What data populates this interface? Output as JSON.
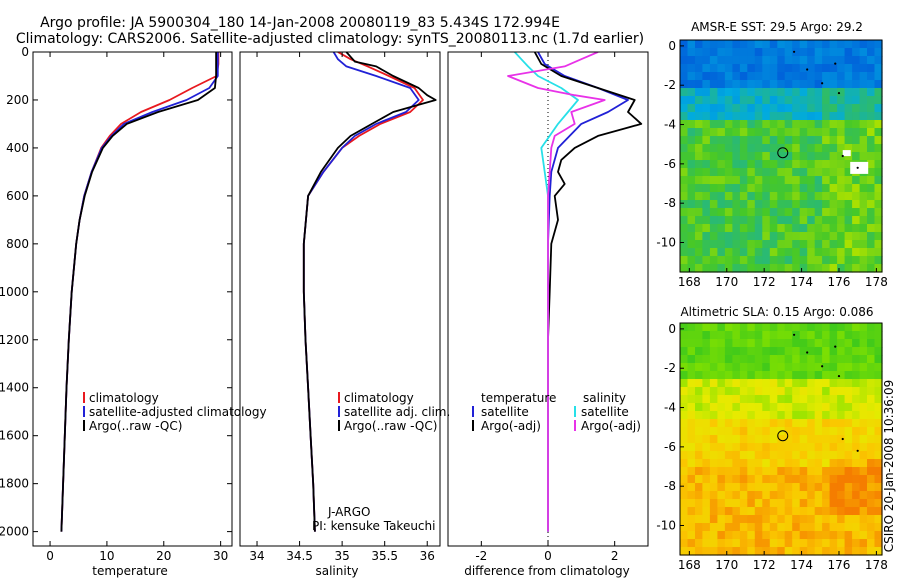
{
  "header": {
    "line1": "Argo profile: JA 5900304_180 14-Jan-2008 20080119_83 5.434S 172.994E",
    "line2": "Climatology: CARS2006. Satellite-adjusted climatology: synTS_20080113.nc (1.7d earlier)"
  },
  "side_stamp": "CSIRO 20-Jan-2008 10:36:09",
  "colors": {
    "climatology": "#e8191f",
    "satellite": "#2121d6",
    "argo": "#000000",
    "sat_sal": "#27e0e8",
    "argo_sal": "#e832e8",
    "axis": "#000000"
  },
  "chart_data": [
    {
      "type": "line",
      "name": "temperature-profile",
      "xlabel": "temperature",
      "ylabel": "",
      "xlim": [
        -3,
        32
      ],
      "ylim": [
        2060,
        0
      ],
      "xticks": [
        0,
        10,
        20,
        30
      ],
      "yticks": [
        0,
        200,
        400,
        600,
        800,
        1000,
        1200,
        1400,
        1600,
        1800,
        2000
      ],
      "legend": [
        "climatology",
        "satellite-adjusted climatology",
        "Argo(..raw -QC)"
      ],
      "series": [
        {
          "name": "climatology",
          "color_key": "climatology",
          "depth": [
            0,
            50,
            100,
            150,
            200,
            250,
            300,
            350,
            400,
            500,
            600,
            700,
            800,
            1000,
            1200,
            1400,
            1600,
            1800,
            2000
          ],
          "values": [
            29.6,
            29.6,
            29.3,
            25,
            21,
            16,
            12.5,
            10.5,
            9,
            7.3,
            6,
            5.2,
            4.6,
            3.8,
            3.3,
            2.9,
            2.6,
            2.3,
            2.0
          ]
        },
        {
          "name": "satellite-adjusted climatology",
          "color_key": "satellite",
          "depth": [
            0,
            50,
            100,
            150,
            200,
            250,
            300,
            350,
            400,
            500,
            600,
            700,
            800,
            1000,
            1200,
            1400,
            1600,
            1800,
            2000
          ],
          "values": [
            29.5,
            29.5,
            29.5,
            28,
            24,
            18,
            13,
            10.8,
            9.1,
            7.3,
            6,
            5.2,
            4.6,
            3.8,
            3.3,
            2.9,
            2.6,
            2.3,
            2.0
          ]
        },
        {
          "name": "Argo(..raw -QC)",
          "color_key": "argo",
          "depth": [
            0,
            50,
            100,
            150,
            200,
            250,
            300,
            350,
            400,
            500,
            600,
            700,
            800,
            1000,
            1200,
            1400,
            1600,
            1800,
            2000
          ],
          "values": [
            29.2,
            29.2,
            29.2,
            29,
            26,
            19,
            13.5,
            11,
            9.3,
            7.4,
            6.1,
            5.2,
            4.6,
            3.8,
            3.3,
            2.9,
            2.6,
            2.3,
            2.0
          ]
        }
      ],
      "annotations": []
    },
    {
      "type": "line",
      "name": "salinity-profile",
      "xlabel": "salinity",
      "ylabel": "",
      "xlim": [
        33.8,
        36.15
      ],
      "ylim": [
        2060,
        0
      ],
      "xticks": [
        34,
        34.5,
        35,
        35.5,
        36
      ],
      "yticks": [],
      "legend": [
        "climatology",
        "satellite adj. clim.",
        "Argo(..raw -QC)"
      ],
      "series": [
        {
          "name": "climatology",
          "color_key": "climatology",
          "depth": [
            0,
            30,
            60,
            100,
            150,
            200,
            250,
            300,
            350,
            400,
            500,
            600,
            800,
            1000,
            1200,
            1400,
            1600,
            1800,
            2000
          ],
          "values": [
            34.95,
            35.1,
            35.3,
            35.55,
            35.85,
            35.95,
            35.8,
            35.45,
            35.2,
            35.0,
            34.78,
            34.6,
            34.55,
            34.55,
            34.57,
            34.6,
            34.63,
            34.66,
            34.68
          ]
        },
        {
          "name": "satellite adj. clim.",
          "color_key": "satellite",
          "depth": [
            0,
            30,
            60,
            100,
            150,
            200,
            250,
            300,
            350,
            400,
            500,
            600,
            800,
            1000,
            1200,
            1400,
            1600,
            1800,
            2000
          ],
          "values": [
            34.9,
            34.95,
            35.05,
            35.4,
            35.8,
            35.9,
            35.75,
            35.4,
            35.15,
            35.0,
            34.78,
            34.6,
            34.55,
            34.55,
            34.57,
            34.6,
            34.63,
            34.66,
            34.68
          ]
        },
        {
          "name": "Argo(..raw -QC)",
          "color_key": "argo",
          "depth": [
            0,
            20,
            40,
            60,
            100,
            150,
            180,
            200,
            220,
            250,
            300,
            350,
            400,
            500,
            600,
            800,
            1000,
            1200,
            1400,
            1600,
            1800,
            2000
          ],
          "values": [
            35.05,
            35.1,
            35.15,
            35.4,
            35.6,
            35.9,
            36.0,
            36.1,
            35.9,
            35.6,
            35.35,
            35.1,
            34.95,
            34.75,
            34.6,
            34.55,
            34.55,
            34.57,
            34.6,
            34.63,
            34.66,
            34.68
          ]
        }
      ],
      "annotations": [
        "J-ARGO",
        "PI: kensuke Takeuchi"
      ]
    },
    {
      "type": "line",
      "name": "difference-profile",
      "xlabel": "difference from climatology",
      "ylabel": "",
      "xlim": [
        -3,
        3
      ],
      "ylim": [
        2060,
        0
      ],
      "xticks": [
        -2,
        0,
        2
      ],
      "yticks": [],
      "legend_titles": [
        "temperature",
        "salinity"
      ],
      "legend": [
        "satellite",
        "Argo(-adj)",
        "satellite",
        "Argo(-adj)"
      ],
      "series": [
        {
          "name": "temperature satellite",
          "color_key": "satellite",
          "depth": [
            0,
            50,
            100,
            150,
            200,
            250,
            300,
            400,
            500,
            600,
            800,
            1000,
            1200,
            1400,
            1600,
            1800,
            2000
          ],
          "values": [
            -0.3,
            -0.1,
            0.5,
            1.5,
            2.4,
            1.8,
            1.0,
            0.3,
            0.1,
            0.05,
            0,
            0,
            0,
            0,
            0,
            0,
            0
          ]
        },
        {
          "name": "temperature Argo(-adj)",
          "color_key": "argo",
          "depth": [
            0,
            50,
            100,
            150,
            200,
            250,
            300,
            350,
            400,
            450,
            500,
            550,
            600,
            700,
            800,
            1000,
            1200,
            1400,
            1600,
            1800,
            2000
          ],
          "values": [
            -0.4,
            -0.2,
            0.4,
            1.5,
            2.6,
            2.4,
            2.8,
            1.5,
            0.8,
            0.4,
            0.3,
            0.5,
            0.2,
            0.3,
            0.1,
            0.05,
            0,
            0,
            0,
            0,
            0
          ]
        },
        {
          "name": "salinity satellite",
          "color_key": "sat_sal",
          "depth": [
            0,
            30,
            60,
            100,
            150,
            200,
            250,
            300,
            400,
            500,
            600,
            800,
            1000,
            1200,
            1400,
            1600,
            1800,
            2000
          ],
          "values": [
            -1.0,
            -0.8,
            -0.6,
            -0.3,
            0.4,
            0.9,
            0.6,
            0.3,
            -0.2,
            -0.1,
            0,
            0,
            0,
            0,
            0,
            0,
            0,
            0
          ]
        },
        {
          "name": "salinity Argo(-adj)",
          "color_key": "argo_sal",
          "depth": [
            0,
            30,
            60,
            100,
            150,
            180,
            200,
            250,
            300,
            350,
            400,
            500,
            600,
            800,
            1000,
            1200,
            1400,
            1600,
            1800,
            2000
          ],
          "values": [
            1.5,
            1.0,
            0.5,
            -1.2,
            -0.3,
            0.8,
            1.7,
            0.7,
            0.8,
            0.2,
            0.1,
            0.05,
            0,
            0,
            0,
            0,
            0,
            0,
            0,
            0
          ]
        }
      ],
      "annotations": []
    },
    {
      "type": "heatmap",
      "name": "sst-map",
      "title": "AMSR-E SST: 29.5 Argo: 29.2",
      "xlim": [
        167.5,
        178.3
      ],
      "ylim": [
        -11.5,
        0.3
      ],
      "xticks": [
        168,
        170,
        172,
        174,
        176,
        178
      ],
      "yticks": [
        0,
        -2,
        -4,
        -6,
        -8,
        -10
      ],
      "profile_location": {
        "lon": 172.994,
        "lat": -5.434
      }
    },
    {
      "type": "heatmap",
      "name": "sla-map",
      "title": "Altimetric SLA: 0.15 Argo: 0.086",
      "xlim": [
        167.5,
        178.3
      ],
      "ylim": [
        -11.5,
        0.3
      ],
      "xticks": [
        168,
        170,
        172,
        174,
        176,
        178
      ],
      "yticks": [
        0,
        -2,
        -4,
        -6,
        -8,
        -10
      ],
      "profile_location": {
        "lon": 172.994,
        "lat": -5.434
      }
    }
  ]
}
